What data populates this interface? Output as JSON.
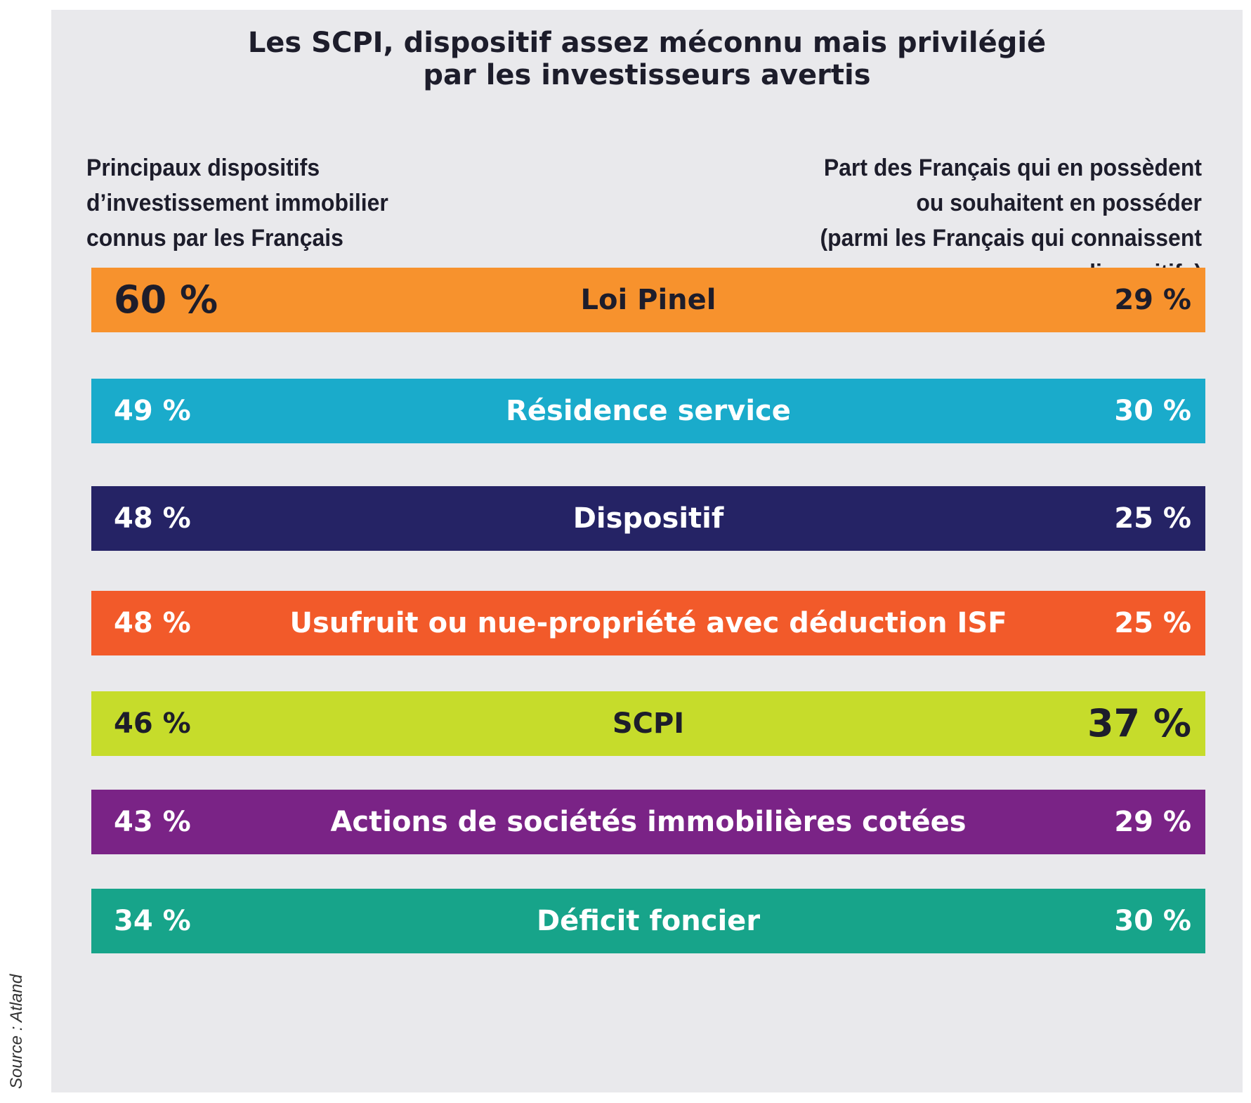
{
  "title_lines": [
    "Les SCPI, dispositif assez méconnu mais privilégié",
    "par les investisseurs avertis"
  ],
  "left_header_lines": [
    "Principaux dispositifs",
    "d’investissement immobilier",
    "connus par les Français"
  ],
  "right_header_lines": [
    "Part des Français qui en possèdent",
    "ou souhaitent en posséder",
    "(parmi les Français qui connaissent",
    "ces dispositifs)"
  ],
  "source": "Source : Atland",
  "colors": {
    "panel": "#e9e9ec",
    "dark_text": "#1d1d2b",
    "light_text": "#ffffff"
  },
  "rows": [
    {
      "known": "60 %",
      "name": "Loi Pinel",
      "own": "29 %",
      "color": "#f7922d",
      "text_color": "#1d1d2b",
      "big_left": true,
      "big_right": false
    },
    {
      "known": "49 %",
      "name": "Résidence service",
      "own": "30 %",
      "color": "#1aabcb",
      "text_color": "#ffffff",
      "big_left": false,
      "big_right": false
    },
    {
      "known": "48 %",
      "name": "Dispositif",
      "own": "25 %",
      "color": "#252365",
      "text_color": "#ffffff",
      "big_left": false,
      "big_right": false
    },
    {
      "known": "48 %",
      "name": "Usufruit ou nue-propriété avec déduction ISF",
      "own": "25 %",
      "color": "#f25a2a",
      "text_color": "#ffffff",
      "big_left": false,
      "big_right": false
    },
    {
      "known": "46 %",
      "name": "SCPI",
      "own": "37 %",
      "color": "#c6dc2b",
      "text_color": "#1d1d2b",
      "big_left": false,
      "big_right": true
    },
    {
      "known": "43 %",
      "name": "Actions de sociétés immobilières cotées",
      "own": "29 %",
      "color": "#7a2386",
      "text_color": "#ffffff",
      "big_left": false,
      "big_right": false
    },
    {
      "known": "34 %",
      "name": "Déficit foncier",
      "own": "30 %",
      "color": "#17a48a",
      "text_color": "#ffffff",
      "big_left": false,
      "big_right": false
    }
  ],
  "chart_data": {
    "type": "table",
    "title": "Les SCPI, dispositif assez méconnu mais privilégié par les investisseurs avertis",
    "columns": [
      "Principaux dispositifs d’investissement immobilier connus par les Français",
      "Part des Français qui en possèdent ou souhaitent en posséder (parmi les Français qui connaissent ces dispositifs)"
    ],
    "categories": [
      "Loi Pinel",
      "Résidence service",
      "Dispositif",
      "Usufruit ou nue-propriété avec déduction ISF",
      "SCPI",
      "Actions de sociétés immobilières cotées",
      "Déficit foncier"
    ],
    "series": [
      {
        "name": "Principaux dispositifs d’investissement immobilier connus par les Français",
        "values": [
          60,
          49,
          48,
          48,
          46,
          43,
          34
        ]
      },
      {
        "name": "Part des Français qui en possèdent ou souhaitent en posséder (parmi les Français qui connaissent ces dispositifs)",
        "values": [
          29,
          30,
          25,
          25,
          37,
          29,
          30
        ]
      }
    ],
    "unit": "%"
  }
}
